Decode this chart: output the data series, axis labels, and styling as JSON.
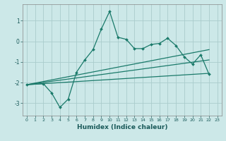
{
  "title": "",
  "xlabel": "Humidex (Indice chaleur)",
  "bg_color": "#cce8e8",
  "grid_color": "#aacccc",
  "line_color": "#1a7a6a",
  "xlim": [
    -0.5,
    23.5
  ],
  "ylim": [
    -3.6,
    1.8
  ],
  "xticks": [
    0,
    1,
    2,
    3,
    4,
    5,
    6,
    7,
    8,
    9,
    10,
    11,
    12,
    13,
    14,
    15,
    16,
    17,
    18,
    19,
    20,
    21,
    22,
    23
  ],
  "yticks": [
    -3,
    -2,
    -1,
    0,
    1
  ],
  "main_x": [
    0,
    2,
    3,
    4,
    5,
    6,
    7,
    8,
    9,
    10,
    11,
    12,
    13,
    14,
    15,
    16,
    17,
    18,
    19,
    20,
    21,
    22
  ],
  "main_y": [
    -2.1,
    -2.05,
    -2.5,
    -3.2,
    -2.8,
    -1.5,
    -0.9,
    -0.4,
    0.6,
    1.45,
    0.2,
    0.1,
    -0.35,
    -0.35,
    -0.15,
    -0.1,
    0.15,
    -0.2,
    -0.75,
    -1.1,
    -0.65,
    -1.6
  ],
  "line1_x": [
    0,
    22
  ],
  "line1_y": [
    -2.1,
    -1.55
  ],
  "line2_x": [
    0,
    22
  ],
  "line2_y": [
    -2.1,
    -0.9
  ],
  "line3_x": [
    0,
    22
  ],
  "line3_y": [
    -2.1,
    -0.4
  ]
}
